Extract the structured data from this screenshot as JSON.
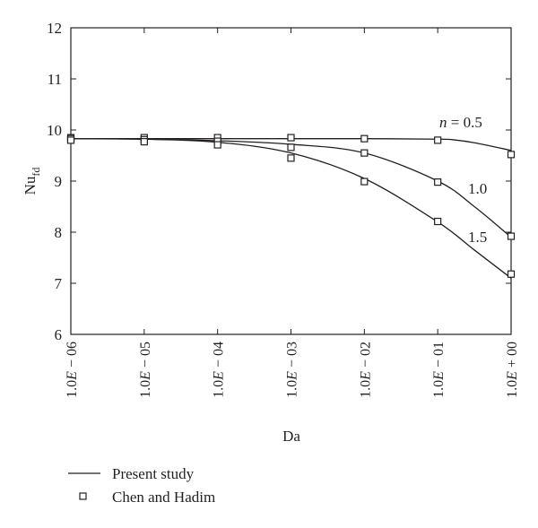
{
  "chart_data": {
    "type": "line",
    "xlabel": "Da",
    "ylabel_main": "Nu",
    "ylabel_sub": "fd",
    "x_categories": [
      "1.0E − 06",
      "1.0E − 05",
      "1.0E − 04",
      "1.0E − 03",
      "1.0E − 02",
      "1.0E − 01",
      "1.0E + 00"
    ],
    "x_tick_parts": [
      {
        "pre": "1.0",
        "e": "E",
        "post": " − 06"
      },
      {
        "pre": "1.0",
        "e": "E",
        "post": " − 05"
      },
      {
        "pre": "1.0",
        "e": "E",
        "post": " − 04"
      },
      {
        "pre": "1.0",
        "e": "E",
        "post": " − 03"
      },
      {
        "pre": "1.0",
        "e": "E",
        "post": " − 02"
      },
      {
        "pre": "1.0",
        "e": "E",
        "post": " − 01"
      },
      {
        "pre": "1.0",
        "e": "E",
        "post": " + 00"
      }
    ],
    "ylim": [
      6,
      12
    ],
    "y_ticks": [
      6,
      7,
      8,
      9,
      10,
      11,
      12
    ],
    "grid": false,
    "series": [
      {
        "name": "Present study",
        "label_var": "n",
        "label_text": " = 0.5",
        "curve": [
          [
            0,
            9.83
          ],
          [
            1,
            9.83
          ],
          [
            2,
            9.83
          ],
          [
            3,
            9.83
          ],
          [
            4,
            9.83
          ],
          [
            5,
            9.82
          ],
          [
            5.2,
            9.81
          ],
          [
            5.5,
            9.75
          ],
          [
            6,
            9.6
          ]
        ],
        "markers": [
          [
            0,
            9.85
          ],
          [
            1,
            9.85
          ],
          [
            2,
            9.85
          ],
          [
            3,
            9.85
          ],
          [
            4,
            9.83
          ],
          [
            5,
            9.8
          ],
          [
            6,
            9.52
          ]
        ]
      },
      {
        "name": "Present study",
        "label_text": "1.0",
        "curve": [
          [
            0,
            9.83
          ],
          [
            1,
            9.82
          ],
          [
            2,
            9.79
          ],
          [
            3,
            9.72
          ],
          [
            4,
            9.55
          ],
          [
            5,
            9.0
          ],
          [
            5.5,
            8.5
          ],
          [
            6,
            7.9
          ]
        ],
        "markers": [
          [
            0,
            9.83
          ],
          [
            1,
            9.81
          ],
          [
            2,
            9.78
          ],
          [
            3,
            9.66
          ],
          [
            4,
            9.55
          ],
          [
            5,
            8.98
          ],
          [
            6,
            7.92
          ]
        ]
      },
      {
        "name": "Present study",
        "label_text": "1.5",
        "curve": [
          [
            0,
            9.83
          ],
          [
            1,
            9.82
          ],
          [
            2,
            9.76
          ],
          [
            3,
            9.55
          ],
          [
            4,
            9.05
          ],
          [
            5,
            8.2
          ],
          [
            5.5,
            7.65
          ],
          [
            6,
            7.1
          ]
        ],
        "markers": [
          [
            0,
            9.8
          ],
          [
            1,
            9.77
          ],
          [
            2,
            9.71
          ],
          [
            3,
            9.45
          ],
          [
            4,
            8.99
          ],
          [
            5,
            8.21
          ],
          [
            6,
            7.18
          ]
        ]
      }
    ],
    "legend": {
      "position": "bottom-left",
      "line_label": "Present study",
      "marker_label": "Chen and Hadim"
    }
  }
}
